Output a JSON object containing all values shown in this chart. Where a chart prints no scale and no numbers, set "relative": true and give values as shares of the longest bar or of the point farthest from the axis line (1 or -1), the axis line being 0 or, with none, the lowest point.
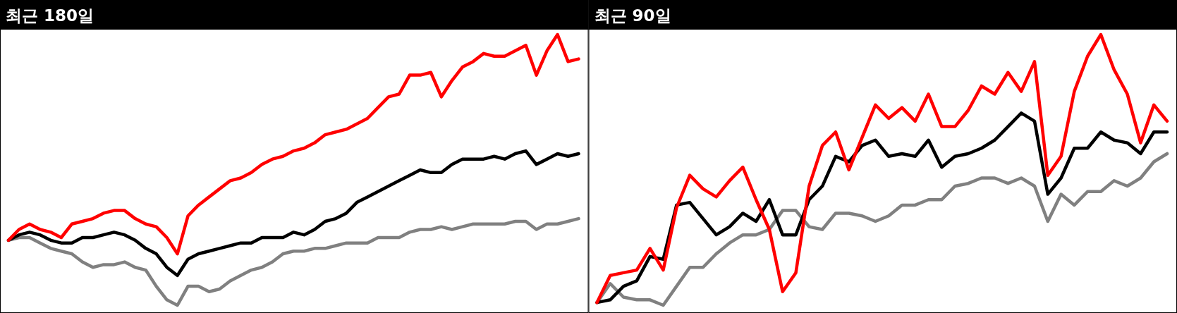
{
  "chart_data": [
    {
      "type": "line",
      "title": "최근 180일",
      "relative": true,
      "categories": [
        null,
        null,
        null,
        null,
        null,
        null,
        null,
        null,
        null,
        null,
        null,
        null,
        null,
        null,
        null,
        null,
        null,
        null,
        null,
        null,
        null,
        null,
        null,
        null,
        null,
        null,
        null,
        null,
        null,
        null,
        null,
        null,
        null,
        null,
        null,
        null,
        null,
        null,
        null,
        null,
        null,
        null,
        null,
        null,
        null,
        null,
        null,
        null,
        null,
        null,
        null,
        null,
        null,
        null,
        null
      ],
      "series": [
        {
          "color": "#808080",
          "values": [
            0.24,
            0.25,
            0.25,
            0.23,
            0.21,
            0.2,
            0.19,
            0.16,
            0.14,
            0.15,
            0.15,
            0.16,
            0.14,
            0.13,
            0.07,
            0.02,
            0,
            0.07,
            0.07,
            0.05,
            0.06,
            0.09,
            0.11,
            0.13,
            0.14,
            0.16,
            0.19,
            0.2,
            0.2,
            0.21,
            0.21,
            0.22,
            0.23,
            0.23,
            0.23,
            0.25,
            0.25,
            0.25,
            0.27,
            0.28,
            0.28,
            0.29,
            0.28,
            0.29,
            0.3,
            0.3,
            0.3,
            0.3,
            0.31,
            0.31,
            0.28,
            0.3,
            0.3,
            0.31,
            0.32
          ]
        },
        {
          "color": "#000000",
          "values": [
            0.24,
            0.26,
            0.27,
            0.26,
            0.24,
            0.23,
            0.23,
            0.25,
            0.25,
            0.26,
            0.27,
            0.26,
            0.24,
            0.21,
            0.19,
            0.14,
            0.11,
            0.17,
            0.19,
            0.2,
            0.21,
            0.22,
            0.23,
            0.23,
            0.25,
            0.25,
            0.25,
            0.27,
            0.26,
            0.28,
            0.31,
            0.32,
            0.34,
            0.38,
            0.4,
            0.42,
            0.44,
            0.46,
            0.48,
            0.5,
            0.49,
            0.49,
            0.52,
            0.54,
            0.54,
            0.54,
            0.55,
            0.54,
            0.56,
            0.57,
            0.52,
            0.54,
            0.56,
            0.55,
            0.56
          ]
        },
        {
          "color": "#ff0000",
          "values": [
            0.24,
            0.28,
            0.3,
            0.28,
            0.27,
            0.25,
            0.3,
            0.31,
            0.32,
            0.34,
            0.35,
            0.35,
            0.32,
            0.3,
            0.29,
            0.25,
            0.19,
            0.33,
            0.37,
            0.4,
            0.43,
            0.46,
            0.47,
            0.49,
            0.52,
            0.54,
            0.55,
            0.57,
            0.58,
            0.6,
            0.63,
            0.64,
            0.65,
            0.67,
            0.69,
            0.73,
            0.77,
            0.78,
            0.85,
            0.85,
            0.86,
            0.77,
            0.83,
            0.88,
            0.9,
            0.93,
            0.92,
            0.92,
            0.94,
            0.96,
            0.85,
            0.94,
            1.0,
            0.9,
            0.91
          ]
        }
      ]
    },
    {
      "type": "line",
      "title": "최근 90일",
      "relative": true,
      "categories": [
        null,
        null,
        null,
        null,
        null,
        null,
        null,
        null,
        null,
        null,
        null,
        null,
        null,
        null,
        null,
        null,
        null,
        null,
        null,
        null,
        null,
        null,
        null,
        null,
        null,
        null,
        null,
        null,
        null,
        null,
        null,
        null,
        null,
        null,
        null,
        null,
        null,
        null,
        null,
        null,
        null,
        null,
        null,
        null
      ],
      "series": [
        {
          "color": "#808080",
          "values": [
            0.01,
            0.08,
            0.03,
            0.02,
            0.02,
            0,
            0.07,
            0.14,
            0.14,
            0.19,
            0.23,
            0.26,
            0.26,
            0.28,
            0.35,
            0.35,
            0.29,
            0.28,
            0.34,
            0.34,
            0.33,
            0.31,
            0.33,
            0.37,
            0.37,
            0.39,
            0.39,
            0.44,
            0.45,
            0.47,
            0.47,
            0.45,
            0.47,
            0.44,
            0.31,
            0.41,
            0.37,
            0.42,
            0.42,
            0.46,
            0.44,
            0.47,
            0.53,
            0.56
          ]
        },
        {
          "color": "#000000",
          "values": [
            0.01,
            0.02,
            0.07,
            0.09,
            0.18,
            0.17,
            0.37,
            0.38,
            0.32,
            0.26,
            0.29,
            0.34,
            0.31,
            0.39,
            0.26,
            0.26,
            0.39,
            0.44,
            0.55,
            0.53,
            0.59,
            0.61,
            0.55,
            0.56,
            0.55,
            0.61,
            0.51,
            0.55,
            0.56,
            0.58,
            0.61,
            0.66,
            0.71,
            0.68,
            0.41,
            0.47,
            0.58,
            0.58,
            0.64,
            0.61,
            0.6,
            0.56,
            0.64,
            0.64
          ]
        },
        {
          "color": "#ff0000",
          "values": [
            0.01,
            0.11,
            0.12,
            0.13,
            0.21,
            0.13,
            0.36,
            0.48,
            0.43,
            0.4,
            0.46,
            0.51,
            0.39,
            0.28,
            0.05,
            0.12,
            0.44,
            0.59,
            0.64,
            0.5,
            0.62,
            0.74,
            0.69,
            0.73,
            0.68,
            0.78,
            0.66,
            0.66,
            0.72,
            0.81,
            0.78,
            0.86,
            0.79,
            0.9,
            0.48,
            0.55,
            0.79,
            0.92,
            1.0,
            0.87,
            0.78,
            0.6,
            0.74,
            0.68
          ]
        }
      ]
    }
  ]
}
